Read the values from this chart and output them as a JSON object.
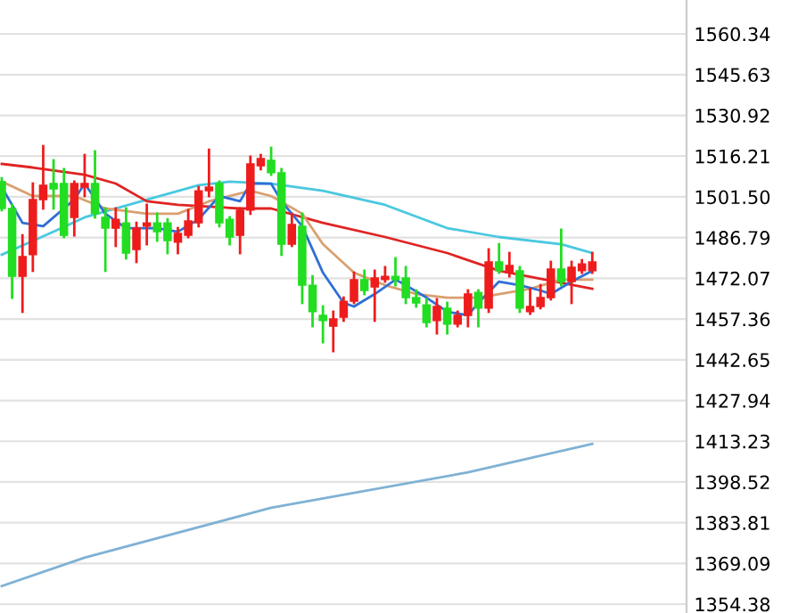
{
  "chart_data": {
    "type": "candlestick",
    "categories": [
      null,
      null,
      null,
      null,
      null,
      null,
      null,
      null,
      null,
      null,
      null,
      null,
      null,
      null,
      null,
      null,
      null,
      null,
      null,
      null,
      null,
      null,
      null,
      null,
      null,
      null,
      null,
      null,
      null,
      null,
      null,
      null,
      null,
      null,
      null,
      null,
      null,
      null,
      null,
      null,
      null,
      null,
      null,
      null,
      null,
      null,
      null,
      null,
      null,
      null,
      null,
      null,
      null,
      null,
      null,
      null,
      null,
      null
    ],
    "ohlc": [
      [
        1507.0,
        1508.2,
        1496.7,
        1497.3
      ],
      [
        1497.3,
        1498.6,
        1465.1,
        1472.8
      ],
      [
        1472.8,
        1487.6,
        1460.0,
        1479.9
      ],
      [
        1480.6,
        1506.3,
        1474.8,
        1500.5
      ],
      [
        1500.5,
        1519.8,
        1497.3,
        1505.7
      ],
      [
        1506.3,
        1514.7,
        1497.3,
        1504.4
      ],
      [
        1506.3,
        1511.5,
        1487.0,
        1487.6
      ],
      [
        1494.1,
        1507.0,
        1487.6,
        1506.3
      ],
      [
        1505.0,
        1516.6,
        1501.8,
        1506.3
      ],
      [
        1506.3,
        1517.9,
        1494.1,
        1495.4
      ],
      [
        1494.1,
        1497.3,
        1474.8,
        1490.2
      ],
      [
        1490.2,
        1497.3,
        1483.8,
        1493.4
      ],
      [
        1492.1,
        1497.3,
        1479.3,
        1481.2
      ],
      [
        1482.5,
        1492.1,
        1478.0,
        1490.2
      ],
      [
        1490.9,
        1498.6,
        1484.4,
        1492.1
      ],
      [
        1492.1,
        1495.4,
        1485.7,
        1488.9
      ],
      [
        1492.1,
        1493.4,
        1481.2,
        1485.7
      ],
      [
        1485.1,
        1490.2,
        1481.2,
        1488.3
      ],
      [
        1487.6,
        1496.7,
        1487.0,
        1492.8
      ],
      [
        1492.1,
        1505.0,
        1490.9,
        1503.7
      ],
      [
        1503.7,
        1518.5,
        1501.8,
        1505.0
      ],
      [
        1506.3,
        1507.0,
        1490.9,
        1492.1
      ],
      [
        1493.4,
        1494.1,
        1484.4,
        1487.0
      ],
      [
        1487.6,
        1497.3,
        1481.2,
        1496.7
      ],
      [
        1496.7,
        1516.0,
        1495.4,
        1513.4
      ],
      [
        1512.7,
        1516.6,
        1511.5,
        1515.3
      ],
      [
        1514.7,
        1519.2,
        1509.5,
        1510.2
      ],
      [
        1510.2,
        1511.5,
        1480.6,
        1484.4
      ],
      [
        1484.4,
        1495.4,
        1483.8,
        1491.5
      ],
      [
        1490.9,
        1495.4,
        1463.2,
        1469.6
      ],
      [
        1469.6,
        1472.8,
        1454.8,
        1460.0
      ],
      [
        1458.7,
        1461.9,
        1449.0,
        1456.8
      ],
      [
        1454.8,
        1460.0,
        1445.8,
        1457.4
      ],
      [
        1458.0,
        1465.1,
        1456.8,
        1463.8
      ],
      [
        1463.8,
        1474.1,
        1463.2,
        1471.6
      ],
      [
        1471.6,
        1474.8,
        1466.4,
        1467.7
      ],
      [
        1469.0,
        1474.8,
        1456.8,
        1472.2
      ],
      [
        1471.6,
        1476.1,
        1470.9,
        1472.8
      ],
      [
        1472.8,
        1479.3,
        1469.6,
        1471.6
      ],
      [
        1472.2,
        1476.1,
        1463.2,
        1465.1
      ],
      [
        1465.1,
        1467.7,
        1461.9,
        1463.2
      ],
      [
        1462.5,
        1464.5,
        1454.8,
        1456.1
      ],
      [
        1456.8,
        1464.5,
        1452.2,
        1461.9
      ],
      [
        1461.3,
        1463.2,
        1452.2,
        1455.5
      ],
      [
        1455.5,
        1460.0,
        1454.8,
        1458.7
      ],
      [
        1458.7,
        1467.7,
        1454.8,
        1466.4
      ],
      [
        1467.0,
        1467.7,
        1454.8,
        1461.3
      ],
      [
        1461.3,
        1482.5,
        1460.0,
        1478.0
      ],
      [
        1478.0,
        1484.4,
        1474.1,
        1474.8
      ],
      [
        1474.1,
        1481.2,
        1472.8,
        1476.7
      ],
      [
        1474.8,
        1476.1,
        1460.0,
        1461.3
      ],
      [
        1460.0,
        1468.3,
        1459.3,
        1461.9
      ],
      [
        1461.9,
        1469.6,
        1461.3,
        1465.1
      ],
      [
        1465.1,
        1478.0,
        1464.5,
        1475.4
      ],
      [
        1475.4,
        1489.6,
        1469.6,
        1470.9
      ],
      [
        1470.9,
        1478.0,
        1463.2,
        1476.1
      ],
      [
        1474.8,
        1478.6,
        1474.1,
        1477.3
      ],
      [
        1474.8,
        1481.2,
        1474.1,
        1478.0
      ]
    ],
    "colors": [
      "#22dd22",
      "#22dd22",
      "#ee1c1c",
      "#ee1c1c",
      "#ee1c1c",
      "#22dd22",
      "#22dd22",
      "#ee1c1c",
      "#ee1c1c",
      "#22dd22",
      "#22dd22",
      "#ee1c1c",
      "#22dd22",
      "#ee1c1c",
      "#ee1c1c",
      "#22dd22",
      "#22dd22",
      "#ee1c1c",
      "#ee1c1c",
      "#ee1c1c",
      "#ee1c1c",
      "#22dd22",
      "#22dd22",
      "#ee1c1c",
      "#ee1c1c",
      "#ee1c1c",
      "#22dd22",
      "#22dd22",
      "#ee1c1c",
      "#22dd22",
      "#22dd22",
      "#22dd22",
      "#ee1c1c",
      "#ee1c1c",
      "#ee1c1c",
      "#22dd22",
      "#ee1c1c",
      "#ee1c1c",
      "#22dd22",
      "#22dd22",
      "#22dd22",
      "#22dd22",
      "#ee1c1c",
      "#22dd22",
      "#ee1c1c",
      "#ee1c1c",
      "#22dd22",
      "#ee1c1c",
      "#22dd22",
      "#ee1c1c",
      "#22dd22",
      "#ee1c1c",
      "#ee1c1c",
      "#ee1c1c",
      "#22dd22",
      "#ee1c1c",
      "#ee1c1c",
      "#ee1c1c"
    ],
    "series": [
      {
        "type": "line",
        "color": "#4ac8e0",
        "values": [
          1480.6,
          null,
          null,
          null,
          null,
          1488.9,
          null,
          null,
          1494.1,
          null,
          null,
          null,
          null,
          null,
          1500.5,
          null,
          null,
          null,
          null,
          1505.7,
          null,
          null,
          1507.0,
          null,
          null,
          null,
          1506.3,
          null,
          null,
          null,
          null,
          1503.7,
          null,
          null,
          null,
          null,
          null,
          1498.6,
          null,
          null,
          null,
          null,
          null,
          1490.2,
          null,
          null,
          null,
          null,
          1487.0,
          null,
          null,
          null,
          null,
          null,
          1484.4,
          null,
          null,
          1481.2
        ]
      },
      {
        "type": "line",
        "color": "#e02424",
        "values": [
          1513.4,
          null,
          null,
          1512.1,
          null,
          null,
          null,
          null,
          1509.5,
          null,
          null,
          1506.3,
          null,
          null,
          1499.9,
          null,
          null,
          1498.6,
          null,
          null,
          null,
          null,
          null,
          1497.3,
          null,
          null,
          1497.3,
          null,
          null,
          null,
          null,
          1492.1,
          null,
          null,
          null,
          null,
          null,
          1487.0,
          null,
          null,
          null,
          null,
          null,
          1481.2,
          null,
          null,
          null,
          null,
          1474.8,
          null,
          null,
          null,
          null,
          null,
          null,
          null,
          null,
          1468.3
        ]
      },
      {
        "type": "line",
        "color": "#d9a070",
        "values": [
          1507.0,
          null,
          null,
          1501.8,
          null,
          null,
          null,
          1501.8,
          null,
          null,
          1497.3,
          null,
          null,
          null,
          1495.4,
          null,
          null,
          1495.4,
          null,
          null,
          1499.9,
          null,
          null,
          null,
          1503.7,
          null,
          1501.8,
          null,
          null,
          1495.4,
          null,
          1484.4,
          null,
          null,
          1474.1,
          null,
          null,
          1469.6,
          null,
          null,
          1466.4,
          null,
          null,
          1465.1,
          null,
          null,
          1465.1,
          null,
          1466.4,
          null,
          null,
          1468.3,
          null,
          null,
          1471.6,
          null,
          null,
          1471.6
        ]
      },
      {
        "type": "line",
        "color": "#2f6fd6",
        "values": [
          1505.0,
          null,
          1492.1,
          null,
          1490.9,
          null,
          null,
          1500.5,
          1506.3,
          null,
          1495.4,
          null,
          1490.2,
          null,
          null,
          1490.2,
          null,
          1488.9,
          null,
          1493.4,
          null,
          1501.8,
          null,
          1499.9,
          1506.3,
          null,
          1506.3,
          1499.9,
          null,
          1490.9,
          null,
          1474.1,
          null,
          1463.2,
          1461.9,
          null,
          1466.4,
          null,
          1471.6,
          1469.6,
          null,
          1465.1,
          null,
          1460.0,
          null,
          1458.7,
          1463.2,
          null,
          1470.9,
          null,
          1469.6,
          null,
          1467.7,
          1466.4,
          null,
          1470.9,
          null,
          1474.8
        ]
      },
      {
        "type": "line",
        "color": "#7fb2d4",
        "values": [
          1360.9,
          null,
          null,
          null,
          null,
          null,
          null,
          null,
          1371.2,
          null,
          null,
          null,
          null,
          null,
          null,
          null,
          null,
          null,
          null,
          null,
          null,
          null,
          null,
          null,
          1387.2,
          null,
          1389.2,
          null,
          null,
          null,
          null,
          null,
          null,
          null,
          null,
          null,
          null,
          null,
          null,
          null,
          null,
          null,
          null,
          null,
          null,
          1402.0,
          null,
          null,
          null,
          null,
          null,
          null,
          null,
          null,
          null,
          null,
          null,
          1412.3
        ]
      }
    ],
    "ylim": [
      1351.2,
      1572.6
    ],
    "yticks": [
      1560.34,
      1545.63,
      1530.92,
      1516.21,
      {
        "value": 1501.5,
        "label": "1501.50"
      },
      1486.79,
      1472.07,
      1457.36,
      1442.65,
      1427.94,
      1413.23,
      1398.52,
      1383.81,
      1369.09,
      1354.38
    ],
    "grid": "y",
    "tick_labels": "y"
  }
}
